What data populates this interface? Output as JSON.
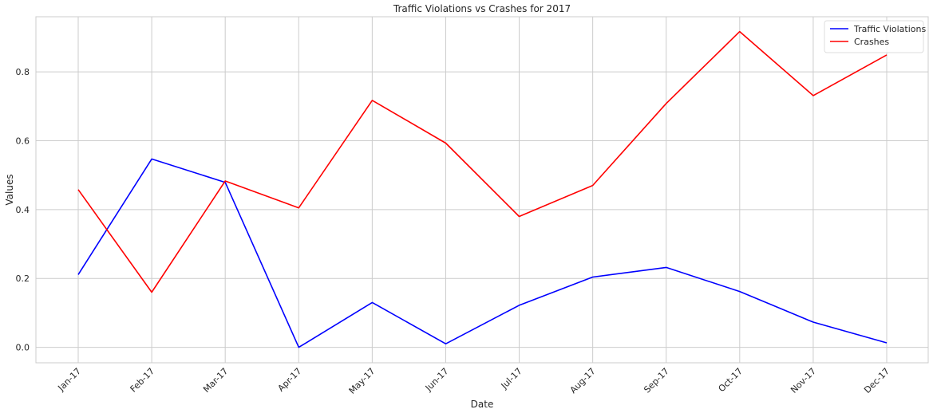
{
  "chart_data": {
    "type": "line",
    "title": "Traffic Violations vs Crashes for 2017",
    "xlabel": "Date",
    "ylabel": "Values",
    "categories": [
      "Jan-17",
      "Feb-17",
      "Mar-17",
      "Apr-17",
      "May-17",
      "Jun-17",
      "Jul-17",
      "Aug-17",
      "Sep-17",
      "Oct-17",
      "Nov-17",
      "Dec-17"
    ],
    "ylim": [
      -0.045,
      0.96
    ],
    "yticks": [
      0.0,
      0.2,
      0.4,
      0.6,
      0.8
    ],
    "ytick_labels": [
      "0.0",
      "0.2",
      "0.4",
      "0.6",
      "0.8"
    ],
    "grid": true,
    "legend_position": "top-right",
    "series": [
      {
        "name": "Traffic Violations",
        "color": "#0000ff",
        "values": [
          0.211,
          0.547,
          0.479,
          0.0,
          0.13,
          0.01,
          0.122,
          0.204,
          0.232,
          0.162,
          0.073,
          0.013
        ]
      },
      {
        "name": "Crashes",
        "color": "#ff0000",
        "values": [
          0.458,
          0.16,
          0.483,
          0.405,
          0.717,
          0.593,
          0.38,
          0.47,
          0.708,
          0.917,
          0.731,
          0.849
        ]
      }
    ]
  }
}
